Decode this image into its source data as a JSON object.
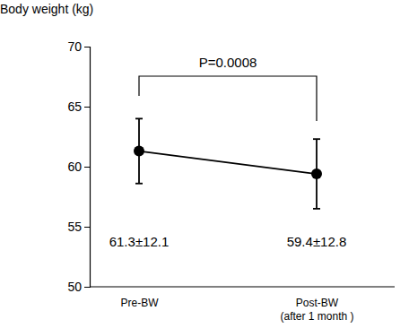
{
  "chart_data": {
    "type": "line",
    "y_label": "Body weight (kg)",
    "categories": [
      "Pre-BW",
      "Post-BW\n(after 1 month )"
    ],
    "values": [
      61.3,
      59.4
    ],
    "errors": [
      2.7,
      2.9
    ],
    "data_labels": true,
    "value_labels": [
      "61.3±12.1",
      "59.4±12.8"
    ],
    "annotation": "P=0.0008",
    "color": "#000000",
    "marker": "circle",
    "ylim": [
      50,
      70
    ],
    "yticks": [
      50,
      55,
      60,
      65,
      70
    ],
    "grid": false
  }
}
